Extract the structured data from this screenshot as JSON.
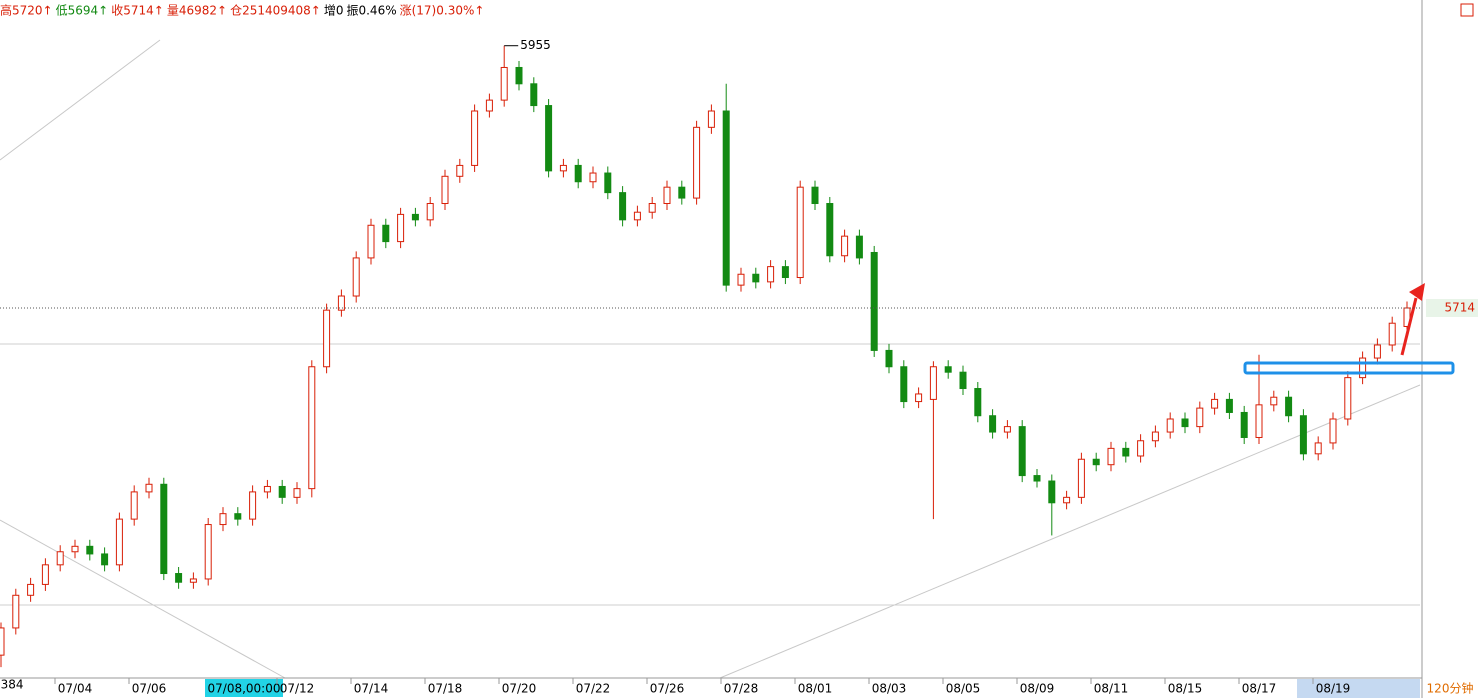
{
  "chart_data": {
    "type": "candlestick",
    "header": [
      {
        "text": "高5720↑",
        "color": "#d81e06"
      },
      {
        "text": "低5694↑",
        "color": "#138a13"
      },
      {
        "text": "收5714↑",
        "color": "#d81e06"
      },
      {
        "text": "量46982↑",
        "color": "#d81e06"
      },
      {
        "text": "仓251409408↑",
        "color": "#d81e06"
      },
      {
        "text": "增0",
        "color": "#000000"
      },
      {
        "text": "振0.46%",
        "color": "#000000"
      },
      {
        "text": "涨(17)0.30%↑",
        "color": "#d81e06"
      }
    ],
    "crosshair_label": "07/08,00:00",
    "period": "120分钟",
    "up_color": "#d81e06",
    "down_color": "#138a13",
    "ylim": [
      5374,
      5997
    ],
    "categories": [
      null,
      null,
      null,
      null,
      null,
      "07/04",
      null,
      null,
      null,
      null,
      "07/06",
      null,
      null,
      null,
      null,
      null,
      null,
      null,
      null,
      null,
      "07/12",
      null,
      null,
      null,
      null,
      "07/14",
      null,
      null,
      null,
      null,
      "07/18",
      null,
      null,
      null,
      null,
      "07/20",
      null,
      null,
      null,
      null,
      "07/22",
      null,
      null,
      null,
      null,
      "07/26",
      null,
      null,
      null,
      null,
      "07/28",
      null,
      null,
      null,
      null,
      "08/01",
      null,
      null,
      null,
      null,
      "08/03",
      null,
      null,
      null,
      null,
      "08/05",
      null,
      null,
      null,
      null,
      "08/09",
      null,
      null,
      null,
      null,
      "08/11",
      null,
      null,
      null,
      null,
      "08/15",
      null,
      null,
      null,
      null,
      "08/17",
      null,
      null,
      null,
      null,
      "08/19",
      null,
      null,
      null,
      null,
      null
    ],
    "open": [
      5395,
      5420,
      5450,
      5460,
      5478,
      5490,
      5495,
      5488,
      5478,
      5520,
      5545,
      5552,
      5470,
      5462,
      5465,
      5515,
      5525,
      5520,
      5545,
      5550,
      5540,
      5548,
      5660,
      5712,
      5725,
      5760,
      5790,
      5775,
      5800,
      5795,
      5810,
      5835,
      5845,
      5895,
      5905,
      5935,
      5920,
      5900,
      5840,
      5845,
      5830,
      5838,
      5820,
      5795,
      5802,
      5810,
      5825,
      5815,
      5880,
      5895,
      5735,
      5745,
      5738,
      5752,
      5742,
      5825,
      5810,
      5762,
      5780,
      5765,
      5675,
      5660,
      5628,
      5630,
      5660,
      5655,
      5640,
      5615,
      5600,
      5605,
      5560,
      5555,
      5535,
      5540,
      5575,
      5570,
      5585,
      5578,
      5592,
      5600,
      5612,
      5605,
      5622,
      5630,
      5618,
      5595,
      5625,
      5632,
      5615,
      5580,
      5590,
      5612,
      5650,
      5668,
      5680,
      5697
    ],
    "high": [
      5425,
      5456,
      5466,
      5484,
      5496,
      5501,
      5501,
      5494,
      5526,
      5551,
      5558,
      5558,
      5476,
      5471,
      5521,
      5531,
      5531,
      5551,
      5556,
      5556,
      5554,
      5666,
      5718,
      5731,
      5766,
      5796,
      5796,
      5806,
      5806,
      5816,
      5841,
      5851,
      5901,
      5911,
      5955,
      5941,
      5926,
      5906,
      5851,
      5851,
      5844,
      5844,
      5826,
      5808,
      5816,
      5831,
      5831,
      5886,
      5901,
      5920,
      5751,
      5751,
      5758,
      5758,
      5831,
      5831,
      5816,
      5786,
      5786,
      5771,
      5681,
      5666,
      5641,
      5665,
      5666,
      5661,
      5646,
      5621,
      5611,
      5611,
      5566,
      5561,
      5546,
      5581,
      5581,
      5591,
      5591,
      5598,
      5606,
      5618,
      5618,
      5628,
      5636,
      5636,
      5624,
      5671,
      5638,
      5638,
      5621,
      5596,
      5618,
      5656,
      5674,
      5686,
      5706,
      5720
    ],
    "low": [
      5384,
      5414,
      5444,
      5454,
      5472,
      5484,
      5482,
      5472,
      5472,
      5514,
      5539,
      5464,
      5456,
      5456,
      5459,
      5509,
      5514,
      5514,
      5539,
      5534,
      5534,
      5540,
      5654,
      5706,
      5719,
      5754,
      5769,
      5769,
      5789,
      5789,
      5804,
      5829,
      5839,
      5889,
      5899,
      5914,
      5894,
      5834,
      5834,
      5824,
      5824,
      5814,
      5789,
      5789,
      5796,
      5804,
      5809,
      5809,
      5874,
      5729,
      5729,
      5732,
      5732,
      5736,
      5736,
      5804,
      5756,
      5756,
      5754,
      5669,
      5654,
      5622,
      5622,
      5520,
      5649,
      5634,
      5609,
      5594,
      5594,
      5554,
      5549,
      5505,
      5529,
      5534,
      5564,
      5564,
      5572,
      5572,
      5586,
      5594,
      5599,
      5599,
      5616,
      5612,
      5589,
      5589,
      5619,
      5609,
      5574,
      5574,
      5584,
      5606,
      5644,
      5662,
      5674,
      5694
    ],
    "close": [
      5420,
      5450,
      5460,
      5478,
      5490,
      5495,
      5488,
      5478,
      5520,
      5545,
      5552,
      5470,
      5462,
      5465,
      5515,
      5525,
      5520,
      5545,
      5550,
      5540,
      5548,
      5660,
      5712,
      5725,
      5760,
      5790,
      5775,
      5800,
      5795,
      5810,
      5835,
      5845,
      5895,
      5905,
      5935,
      5920,
      5900,
      5840,
      5845,
      5830,
      5838,
      5820,
      5795,
      5802,
      5810,
      5825,
      5815,
      5880,
      5895,
      5735,
      5745,
      5738,
      5752,
      5742,
      5825,
      5810,
      5762,
      5780,
      5760,
      5675,
      5660,
      5628,
      5635,
      5660,
      5655,
      5640,
      5615,
      5600,
      5605,
      5560,
      5555,
      5535,
      5540,
      5575,
      5570,
      5585,
      5578,
      5592,
      5600,
      5612,
      5605,
      5622,
      5630,
      5618,
      5595,
      5625,
      5632,
      5615,
      5580,
      5590,
      5612,
      5650,
      5668,
      5680,
      5700,
      5714
    ]
  }
}
